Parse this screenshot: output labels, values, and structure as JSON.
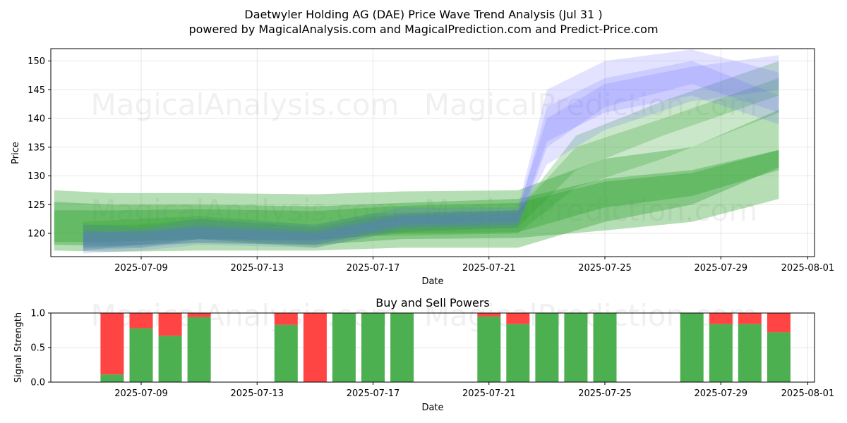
{
  "title": "Daetwyler Holding AG (DAE) Price Wave Trend Analysis (Jul 31 )",
  "subtitle": "powered by MagicalAnalysis.com and MagicalPrediction.com and Predict-Price.com",
  "watermarks": [
    "MagicalAnalysis.com",
    "MagicalPrediction.com"
  ],
  "colors": {
    "green": "#2ca02c",
    "blue": "#6666ff",
    "buy": "#4caf50",
    "sell": "#ff4444"
  },
  "chart_data": [
    {
      "type": "area",
      "title": "",
      "xlabel": "Date",
      "ylabel": "Price",
      "xlim": [
        "2025-07-05",
        "2025-08-01"
      ],
      "ylim": [
        116,
        152
      ],
      "x_ticks": [
        "2025-07-09",
        "2025-07-13",
        "2025-07-17",
        "2025-07-21",
        "2025-07-25",
        "2025-07-29",
        "2025-08-01"
      ],
      "y_ticks": [
        120,
        125,
        130,
        135,
        140,
        145,
        150
      ],
      "grid": true,
      "green_bands": [
        {
          "dates": [
            "2025-07-06",
            "2025-07-08",
            "2025-07-11",
            "2025-07-15",
            "2025-07-18",
            "2025-07-22",
            "2025-07-25",
            "2025-07-28",
            "2025-07-31"
          ],
          "upper": [
            127.5,
            127,
            127,
            126.8,
            127.3,
            127.5,
            133,
            135,
            141.5
          ],
          "lower": [
            117,
            116.8,
            117,
            117,
            117.5,
            117.5,
            122,
            125,
            131.5
          ]
        },
        {
          "dates": [
            "2025-07-06",
            "2025-07-08",
            "2025-07-11",
            "2025-07-15",
            "2025-07-18",
            "2025-07-22",
            "2025-07-25",
            "2025-07-28",
            "2025-07-31"
          ],
          "upper": [
            125.5,
            125,
            125,
            124.7,
            125.3,
            126,
            129.5,
            131,
            134.5
          ],
          "lower": [
            118,
            117.8,
            118.3,
            118,
            119,
            119.2,
            120.5,
            122,
            126
          ]
        },
        {
          "dates": [
            "2025-07-06",
            "2025-07-08",
            "2025-07-11",
            "2025-07-15",
            "2025-07-18",
            "2025-07-22",
            "2025-07-25",
            "2025-07-28",
            "2025-07-31"
          ],
          "upper": [
            124,
            124,
            124.2,
            123.9,
            124.8,
            125.3,
            129,
            130.5,
            134.5
          ],
          "lower": [
            118.5,
            118.5,
            119,
            118.8,
            120,
            120.2,
            124.5,
            126.5,
            131
          ]
        },
        {
          "dates": [
            "2025-07-07",
            "2025-07-09",
            "2025-07-11",
            "2025-07-15",
            "2025-07-17",
            "2025-07-22",
            "2025-07-24",
            "2025-07-27",
            "2025-07-31"
          ],
          "upper": [
            122,
            122.5,
            123,
            121.5,
            123.5,
            124,
            135,
            140,
            147
          ],
          "lower": [
            117,
            118,
            119,
            117.5,
            119.5,
            120,
            128,
            133,
            141
          ]
        },
        {
          "dates": [
            "2025-07-07",
            "2025-07-09",
            "2025-07-11",
            "2025-07-15",
            "2025-07-17",
            "2025-07-22",
            "2025-07-24",
            "2025-07-27",
            "2025-07-31"
          ],
          "upper": [
            121.5,
            121.5,
            122.5,
            121,
            123,
            124,
            137,
            143,
            150
          ],
          "lower": [
            117.5,
            117.5,
            119,
            118,
            120,
            121,
            131,
            137,
            144
          ]
        }
      ],
      "blue_bands": [
        {
          "dates": [
            "2025-07-07",
            "2025-07-09",
            "2025-07-11",
            "2025-07-15",
            "2025-07-18",
            "2025-07-22",
            "2025-07-23",
            "2025-07-25",
            "2025-07-28",
            "2025-07-31"
          ],
          "upper": [
            121.5,
            121,
            122.5,
            121.5,
            124.5,
            124.5,
            145,
            150,
            152,
            148
          ],
          "lower": [
            116.5,
            117,
            118,
            117.5,
            120.5,
            121,
            135,
            142,
            146,
            141
          ]
        },
        {
          "dates": [
            "2025-07-07",
            "2025-07-09",
            "2025-07-11",
            "2025-07-15",
            "2025-07-18",
            "2025-07-22",
            "2025-07-23",
            "2025-07-25",
            "2025-07-28",
            "2025-07-31"
          ],
          "upper": [
            120.5,
            120,
            121.5,
            120.5,
            123.5,
            124,
            140,
            146,
            149,
            151
          ],
          "lower": [
            117.5,
            118,
            119,
            118.5,
            121.5,
            122,
            132,
            138,
            143,
            145
          ]
        },
        {
          "dates": [
            "2025-07-07",
            "2025-07-09",
            "2025-07-11",
            "2025-07-15",
            "2025-07-18",
            "2025-07-22",
            "2025-07-23",
            "2025-07-25",
            "2025-07-28",
            "2025-07-31"
          ],
          "upper": [
            120,
            120.5,
            121,
            120,
            123,
            123.5,
            142,
            147,
            150,
            144
          ],
          "lower": [
            117,
            117.5,
            118.5,
            118,
            121,
            121.5,
            136,
            141,
            144,
            139
          ]
        }
      ]
    },
    {
      "type": "bar",
      "title": "Buy and Sell Powers",
      "xlabel": "Date",
      "ylabel": "Signal Strength",
      "ylim": [
        0,
        1
      ],
      "x_ticks": [
        "2025-07-09",
        "2025-07-13",
        "2025-07-17",
        "2025-07-21",
        "2025-07-25",
        "2025-07-29",
        "2025-08-01"
      ],
      "y_ticks": [
        "0.0",
        "0.5",
        "1.0"
      ],
      "grid": true,
      "series": [
        {
          "name": "Buy",
          "values": [
            0.11,
            0.78,
            0.67,
            0.94,
            0.83,
            0,
            1,
            1,
            1,
            0.95,
            0.84,
            1,
            1,
            1,
            1,
            0.84,
            0.84,
            0.72
          ]
        },
        {
          "name": "Sell",
          "values": [
            0.89,
            0.22,
            0.33,
            0.06,
            0.17,
            1,
            0,
            0,
            0,
            0.05,
            0.16,
            0,
            0,
            0,
            0,
            0.16,
            0.16,
            0.28
          ]
        }
      ],
      "categories": [
        "2025-07-08",
        "2025-07-09",
        "2025-07-10",
        "2025-07-11",
        "2025-07-14",
        "2025-07-15",
        "2025-07-16",
        "2025-07-17",
        "2025-07-18",
        "2025-07-21",
        "2025-07-22",
        "2025-07-23",
        "2025-07-24",
        "2025-07-25",
        "2025-07-28",
        "2025-07-29",
        "2025-07-30",
        "2025-07-31"
      ]
    }
  ]
}
